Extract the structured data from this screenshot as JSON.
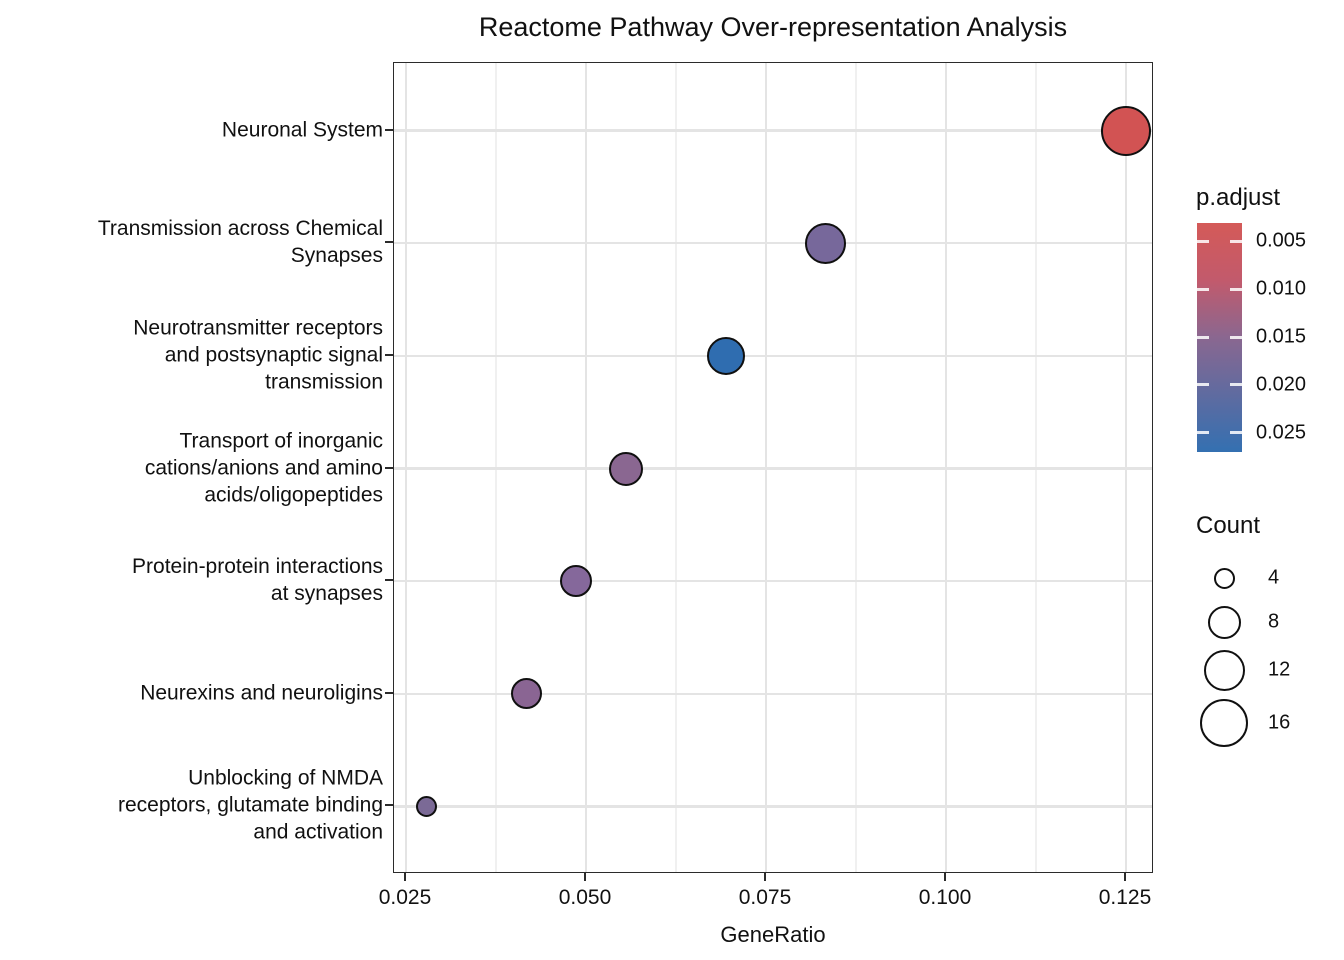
{
  "title": "Reactome Pathway Over-representation Analysis",
  "chart_data": {
    "type": "scatter",
    "title": "Reactome Pathway Over-representation Analysis",
    "xlabel": "GeneRatio",
    "ylabel": "",
    "xlim": [
      0.02333,
      0.12889
    ],
    "x_ticks": [
      0.025,
      0.05,
      0.075,
      0.1,
      0.125
    ],
    "x_tick_labels": [
      "0.025",
      "0.050",
      "0.075",
      "0.100",
      "0.125"
    ],
    "x_minor_gridlines": [
      0.0375,
      0.0625,
      0.0875,
      0.1125
    ],
    "grid": "major x+y, minor x; light gray on white; panel framed",
    "points": [
      {
        "pathway": "Neuronal System",
        "label_lines": [
          "Neuronal System"
        ],
        "gene_ratio": 0.125,
        "count": 18,
        "p_adjust": 0.003,
        "color": "#D25353",
        "radius_px": 25
      },
      {
        "pathway": "Transmission across Chemical Synapses",
        "label_lines": [
          "Transmission across Chemical",
          "Synapses"
        ],
        "gene_ratio": 0.0833,
        "count": 12,
        "p_adjust": 0.019,
        "color": "#77689B",
        "radius_px": 20.5
      },
      {
        "pathway": "Neurotransmitter receptors and postsynaptic signal transmission",
        "label_lines": [
          "Neurotransmitter receptors",
          "and postsynaptic signal",
          "transmission"
        ],
        "gene_ratio": 0.0694,
        "count": 10,
        "p_adjust": 0.027,
        "color": "#2F6DB0",
        "radius_px": 19
      },
      {
        "pathway": "Transport of inorganic cations/anions and amino acids/oligopeptides",
        "label_lines": [
          "Transport of inorganic",
          "cations/anions and amino",
          "acids/oligopeptides"
        ],
        "gene_ratio": 0.0556,
        "count": 8,
        "p_adjust": 0.016,
        "color": "#8A6791",
        "radius_px": 17
      },
      {
        "pathway": "Protein-protein interactions at synapses",
        "label_lines": [
          "Protein-protein interactions",
          "at synapses"
        ],
        "gene_ratio": 0.0486,
        "count": 7,
        "p_adjust": 0.017,
        "color": "#85689B",
        "radius_px": 16
      },
      {
        "pathway": "Neurexins and neuroligins",
        "label_lines": [
          "Neurexins and neuroligins"
        ],
        "gene_ratio": 0.0417,
        "count": 6,
        "p_adjust": 0.016,
        "color": "#8A6593",
        "radius_px": 15.5
      },
      {
        "pathway": "Unblocking of NMDA receptors, glutamate binding and activation",
        "label_lines": [
          "Unblocking of NMDA",
          "receptors, glutamate binding",
          "and activation"
        ],
        "gene_ratio": 0.0278,
        "count": 4,
        "p_adjust": 0.018,
        "color": "#7B6A96",
        "radius_px": 10.5
      }
    ],
    "color_legend": {
      "title": "p.adjust",
      "range": [
        0.0031,
        0.027
      ],
      "ticks": [
        {
          "value": 0.005,
          "label": "0.005"
        },
        {
          "value": 0.01,
          "label": "0.010"
        },
        {
          "value": 0.015,
          "label": "0.015"
        },
        {
          "value": 0.02,
          "label": "0.020"
        },
        {
          "value": 0.025,
          "label": "0.025"
        }
      ],
      "gradient_stops": [
        "#D45A58",
        "#C25A6C",
        "#8A6790",
        "#5F6BA0",
        "#3470B1"
      ],
      "position": "right"
    },
    "size_legend": {
      "title": "Count",
      "items": [
        {
          "label": "4",
          "value": 4,
          "radius_px": 10.5
        },
        {
          "label": "8",
          "value": 8,
          "radius_px": 16.5
        },
        {
          "label": "12",
          "value": 12,
          "radius_px": 20.5
        },
        {
          "label": "16",
          "value": 16,
          "radius_px": 24
        }
      ]
    }
  },
  "colors": {
    "background": "#FFFFFF",
    "panel_border": "#2B2B2B",
    "grid_major": "#E4E4E4",
    "grid_minor": "#F0F0F0",
    "point_stroke": "#101010",
    "text": "#1A1A1A"
  }
}
